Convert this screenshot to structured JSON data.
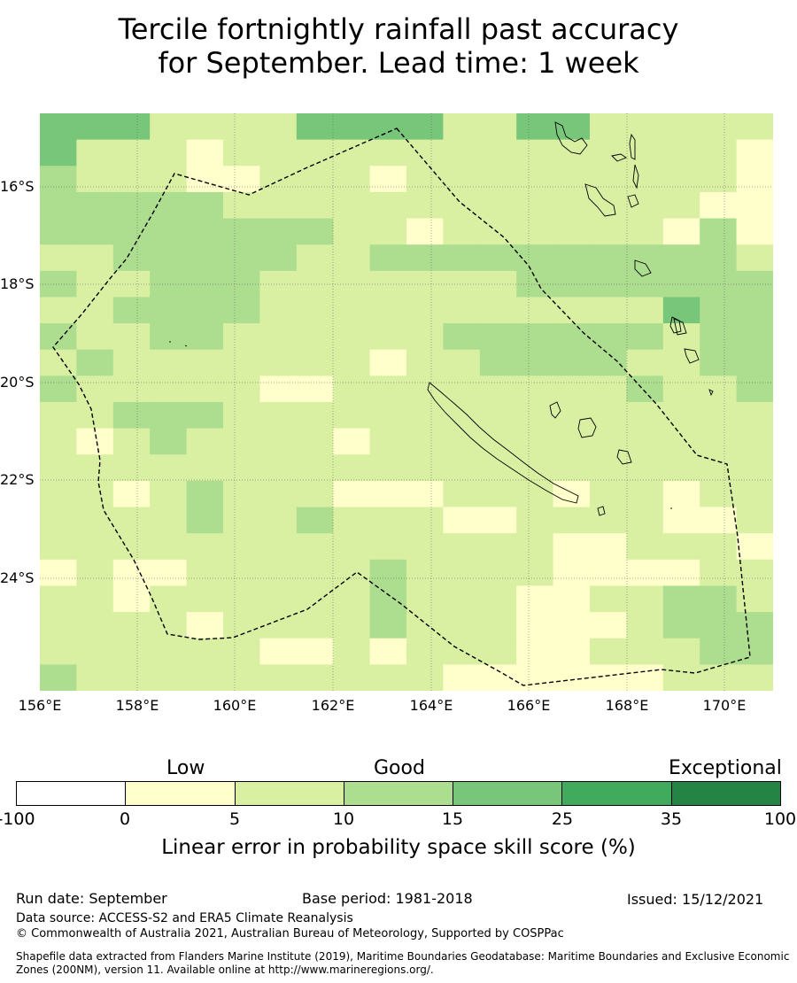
{
  "title_line1": "Tercile fortnightly rainfall past accuracy",
  "title_line2": "for September. Lead time: 1 week",
  "map": {
    "lat_labels": [
      "16°S",
      "18°S",
      "20°S",
      "22°S",
      "24°S"
    ],
    "lon_labels": [
      "156°E",
      "158°E",
      "160°E",
      "162°E",
      "164°E",
      "166°E",
      "168°E",
      "170°E"
    ],
    "colors": {
      "0-5": "#ffffcc",
      "5-10": "#d9f0a3",
      "10-15": "#addd8e",
      "15-25": "#78c679",
      "25-35": "#41ab5d",
      "35-100": "#238443"
    }
  },
  "colorbar": {
    "categories": [
      "Low",
      "Good",
      "Exceptional"
    ],
    "ticks": [
      "-100",
      "0",
      "5",
      "10",
      "15",
      "25",
      "35",
      "100"
    ],
    "colors": [
      "#ffffff",
      "#ffffcc",
      "#d9f0a3",
      "#addd8e",
      "#78c679",
      "#41ab5d",
      "#238443"
    ],
    "label": "Linear error in probability space skill score (%)"
  },
  "footer": {
    "run_date": "Run date: September",
    "base_period": "Base period: 1981-2018",
    "issued": "Issued: 15/12/2021",
    "data_source": "Data source: ACCESS-S2 and ERA5 Climate Reanalysis",
    "copyright": "© Commonwealth of Australia 2021, Australian Bureau of Meteorology, Supported by COSPPac",
    "shapefile": "Shapefile data extracted from Flanders Marine Institute (2019), Maritime Boundaries Geodatabase: Maritime Boundaries and Exclusive Economic Zones (200NM), version 11. Available online at http://www.marineregions.org/."
  }
}
